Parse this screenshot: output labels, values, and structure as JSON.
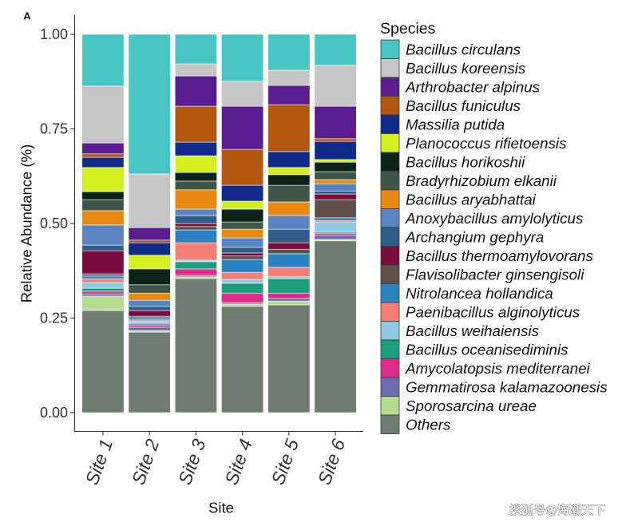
{
  "panel_label": "A",
  "watermark": "搜狐号@海潮天下",
  "chart_data": {
    "type": "bar",
    "stacked": true,
    "title": "",
    "xlabel": "Site",
    "ylabel": "Relative Abundance (%)",
    "ylim": [
      0,
      1
    ],
    "yticks": [
      0,
      0.25,
      0.5,
      0.75,
      1.0
    ],
    "ytick_labels": [
      "0.00",
      "0.25",
      "0.50",
      "0.75",
      "1.00"
    ],
    "grid": false,
    "legend_title": "Species",
    "legend_position": "right",
    "categories": [
      "Site 1",
      "Site 2",
      "Site 3",
      "Site 4",
      "Site 5",
      "Site 6"
    ],
    "series": [
      {
        "name": "Bacillus circulans",
        "color": "#47c5c4",
        "values": [
          0.137,
          0.369,
          0.078,
          0.124,
          0.095,
          0.082
        ]
      },
      {
        "name": "Bacillus koreensis",
        "color": "#c6c6c6",
        "values": [
          0.15,
          0.142,
          0.032,
          0.066,
          0.04,
          0.108
        ]
      },
      {
        "name": "Arthrobacter alpinus",
        "color": "#591d8f",
        "values": [
          0.029,
          0.033,
          0.08,
          0.114,
          0.051,
          0.086
        ]
      },
      {
        "name": "Bacillus funiculus",
        "color": "#b3570f",
        "values": [
          0.009,
          0.007,
          0.095,
          0.095,
          0.124,
          0.007
        ]
      },
      {
        "name": "Massilia putida",
        "color": "#112b8b",
        "values": [
          0.027,
          0.033,
          0.036,
          0.042,
          0.042,
          0.048
        ]
      },
      {
        "name": "Planococcus rifietoensis",
        "color": "#d5ef1f",
        "values": [
          0.064,
          0.036,
          0.044,
          0.021,
          0.019,
          0.007
        ]
      },
      {
        "name": "Bacillus horikoshii",
        "color": "#0d231a",
        "values": [
          0.021,
          0.042,
          0.023,
          0.034,
          0.028,
          0.025
        ]
      },
      {
        "name": "Bradyrhizobium elkanii",
        "color": "#3e5549",
        "values": [
          0.029,
          0.022,
          0.023,
          0.019,
          0.044,
          0.021
        ]
      },
      {
        "name": "Bacillus aryabhattai",
        "color": "#e98a10",
        "values": [
          0.038,
          0.019,
          0.051,
          0.023,
          0.036,
          0.011
        ]
      },
      {
        "name": "Anoxybacillus amylolyticus",
        "color": "#5b82c1",
        "values": [
          0.053,
          0.016,
          0.017,
          0.025,
          0.036,
          0.019
        ]
      },
      {
        "name": "Archangium gephyra",
        "color": "#2f5d87",
        "values": [
          0.015,
          0.011,
          0.021,
          0.015,
          0.036,
          0.008
        ]
      },
      {
        "name": "Bacillus thermoamylovorans",
        "color": "#790b3d",
        "values": [
          0.061,
          0.015,
          0.008,
          0.008,
          0.017,
          0.015
        ]
      },
      {
        "name": "Flavisolibacter ginsengisoli",
        "color": "#604f4a",
        "values": [
          0.006,
          0.004,
          0.009,
          0.009,
          0.012,
          0.048
        ]
      },
      {
        "name": "Nitrolancea hollandica",
        "color": "#2a82c2",
        "values": [
          0.007,
          0.006,
          0.034,
          0.034,
          0.036,
          0.007
        ]
      },
      {
        "name": "Paenibacillus alginolyticus",
        "color": "#f57e77",
        "values": [
          0.01,
          0.004,
          0.046,
          0.019,
          0.025,
          0.004
        ]
      },
      {
        "name": "Bacillus weihaiensis",
        "color": "#8ecbe0",
        "values": [
          0.015,
          0.005,
          0.004,
          0.01,
          0.005,
          0.027
        ]
      },
      {
        "name": "Bacillus oceanisediminis",
        "color": "#1c9e7c",
        "values": [
          0.008,
          0.004,
          0.019,
          0.026,
          0.038,
          0.004
        ]
      },
      {
        "name": "Amycolatopsis mediterranei",
        "color": "#e12a89",
        "values": [
          0.007,
          0.006,
          0.017,
          0.025,
          0.014,
          0.005
        ]
      },
      {
        "name": "Gemmatirosa kalamazoonesis",
        "color": "#6c6bb1",
        "values": [
          0.006,
          0.009,
          0.004,
          0.004,
          0.007,
          0.01
        ]
      },
      {
        "name": "Sporosarcina ureae",
        "color": "#b2dd91",
        "values": [
          0.038,
          0.004,
          0.005,
          0.006,
          0.01,
          0.004
        ]
      },
      {
        "name": "Others",
        "color": "#6e7d70",
        "values": [
          0.27,
          0.213,
          0.354,
          0.281,
          0.285,
          0.454
        ]
      }
    ]
  }
}
